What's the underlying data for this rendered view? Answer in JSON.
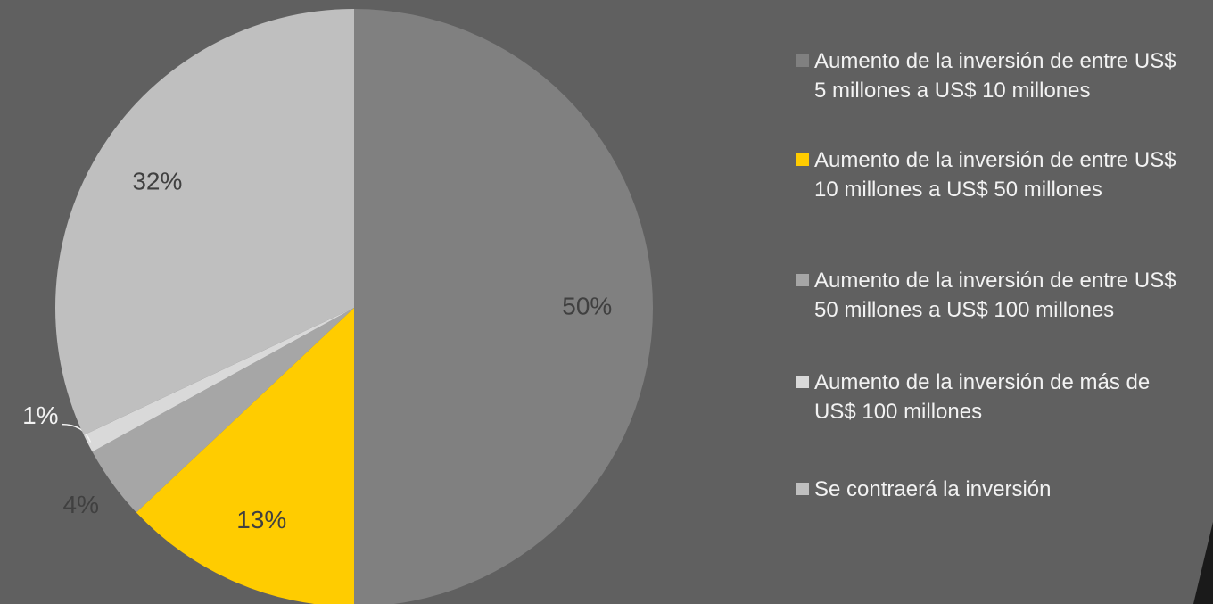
{
  "chart_data": {
    "type": "pie",
    "categories": [
      "Aumento de la inversión de entre US$ 5 millones a US$ 10 millones",
      "Aumento de la inversión de entre US$ 10 millones a US$ 50 millones",
      "Aumento de la inversión de entre US$ 50 millones a US$ 100 millones",
      "Aumento de la inversión de más de US$ 100 millones",
      "Se contraerá la inversión"
    ],
    "values": [
      50,
      13,
      4,
      1,
      32
    ],
    "value_labels": [
      "50%",
      "13%",
      "4%",
      "1%",
      "32%"
    ],
    "colors": [
      "#808080",
      "#ffcc00",
      "#a6a6a6",
      "#d9d9d9",
      "#bfbfbf"
    ],
    "legend": "right"
  }
}
